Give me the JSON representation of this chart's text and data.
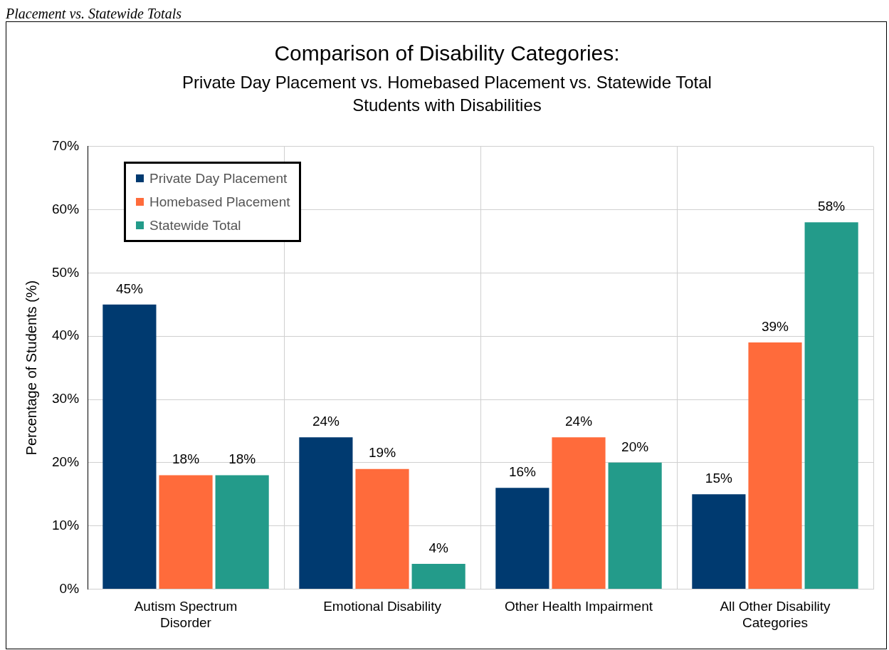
{
  "chart_data": {
    "type": "bar",
    "title": "Comparison of Disability Categories:",
    "subtitle": "Private Day Placement vs. Homebased Placement vs. Statewide Total\nStudents with Disabilities",
    "ylabel": "Percentage of Students (%)",
    "annotations": [
      "Placement vs. Statewide Totals"
    ],
    "categories": [
      "Autism Spectrum\nDisorder",
      "Emotional Disability",
      "Other Health Impairment",
      "All Other Disability\nCategories"
    ],
    "series": [
      {
        "name": "Private Day Placement",
        "color": "#003a70",
        "values": [
          45,
          24,
          16,
          15
        ],
        "value_labels": [
          "45%",
          "24%",
          "16%",
          "15%"
        ]
      },
      {
        "name": "Homebased Placement",
        "color": "#ff6b3b",
        "values": [
          18,
          19,
          24,
          39
        ],
        "value_labels": [
          "18%",
          "19%",
          "24%",
          "39%"
        ]
      },
      {
        "name": "Statewide Total",
        "color": "#239b8a",
        "values": [
          18,
          4,
          20,
          58
        ],
        "value_labels": [
          "18%",
          "4%",
          "20%",
          "58%"
        ]
      }
    ],
    "ylim": [
      0,
      70
    ],
    "yticks": [
      {
        "value": 0,
        "label": "0%"
      },
      {
        "value": 10,
        "label": "10%"
      },
      {
        "value": 20,
        "label": "20%"
      },
      {
        "value": 30,
        "label": "30%"
      },
      {
        "value": 40,
        "label": "40%"
      },
      {
        "value": 50,
        "label": "50%"
      },
      {
        "value": 60,
        "label": "60%"
      },
      {
        "value": 70,
        "label": "70%"
      }
    ],
    "grid": true,
    "legend": "top left"
  }
}
